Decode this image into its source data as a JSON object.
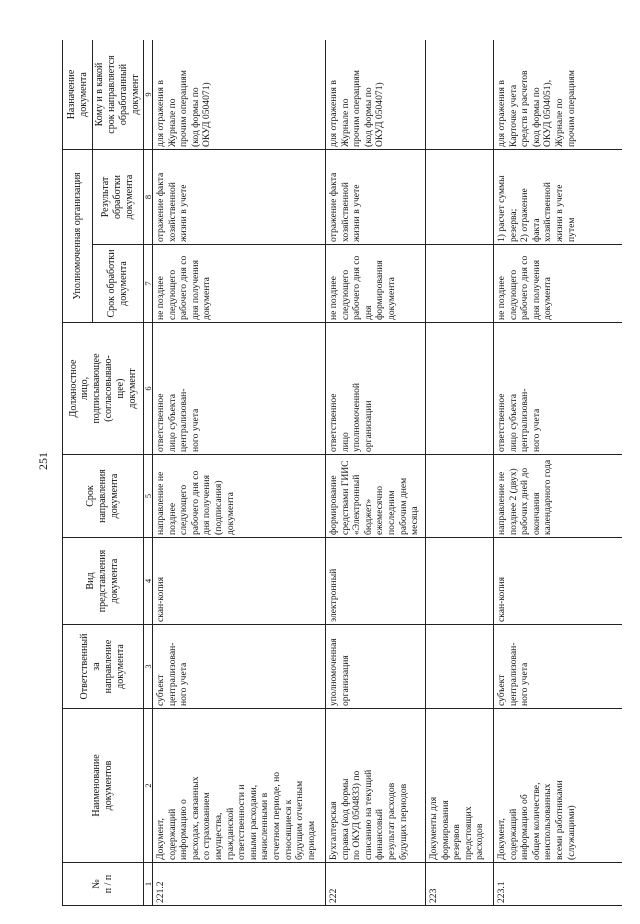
{
  "page_number": "251",
  "table": {
    "headers": {
      "col1": "№\nп / п",
      "col2": "Наименование\nдокументов",
      "col3": "Ответственный\nза\nнаправление\nдокумента",
      "col4": "Вид\nпредставления\nдокумента",
      "col5": "Срок\nнаправления\nдокумента",
      "col6": "Должностное\nлицо,\nподписывающее\n(согласовываю-\nщее)\nдокумент",
      "group_org": "Уполномоченная организация",
      "col7": "Срок обработки\nдокумента",
      "col8": "Результат\nобработки\nдокумента",
      "group_purpose": "Назначение\nдокумента",
      "col9": "Кому и в какой\nсрок направляется\nобработанный\nдокумент"
    },
    "column_numbers": [
      "1",
      "2",
      "3",
      "4",
      "5",
      "6",
      "7",
      "8",
      "9"
    ],
    "rows": [
      [
        "221.2",
        "Документ,\nсодержащий\nинформацию о\nрасходах, связанных\nсо страхованием\nимущества,\nгражданской\nответственности и\nиными расходами,\nначисленными в\nотчетном периоде, но\nотносящиеся к\nбудущим отчетным\nпериодам",
        "субъект\nцентрализован-\nного учета",
        "скан-копия",
        "направление не\nпозднее\nследующего\nрабочего дня со\nдня получения\n(подписания)\nдокумента",
        "ответственное\nлицо субъекта\nцентрализован-\nного учета",
        "не позднее\nследующего\nрабочего дня со\nдня получения\nдокумента",
        "отражение факта\nхозяйственной\nжизни в учете",
        "для отражения в\nЖурнале по\nпрочим операциям\n(код формы по\nОКУД 0504071)"
      ],
      [
        "222",
        "Бухгалтерская\nсправка (код формы\nпо ОКУД 0504833) по\nсписанию на текущий\nфинансовый\nрезультат расходов\nбудущих периодов",
        "уполномоченная\nорганизация",
        "электронный",
        "формирование\nсредствами ГИИС\n«Электронный\nбюджет»\nежемесячно\nпоследним\nрабочим днем\nмесяца",
        "ответственное\nлицо\nуполномоченной\nорганизации",
        "не позднее\nследующего\nрабочего дня со\nдня формирования\nдокумента",
        "отражение факта\nхозяйственной\nжизни в учете",
        "для отражения в\nЖурнале по\nпрочим операциям\n(код формы по\nОКУД 0504071)"
      ],
      [
        "223",
        "Документы для\nформирования\nрезервов\nпредстоящих\nрасходов",
        "",
        "",
        "",
        "",
        "",
        "",
        ""
      ],
      [
        "223.1",
        "Документ,\nсодержащий\nинформацию об\nобщем количестве,\nнеиспользованных\nвсеми работниками\n(служащими)",
        "субъект\nцентрализован-\nного учета",
        "скан-копия",
        "направление не\nпозднее 2 (двух)\nрабочих дней до\nокончания\nкалендарного года",
        "ответственное\nлицо субъекта\nцентрализован-\nного учета",
        "не позднее\nследующего\nрабочего дня со\nдня получения\nдокумента",
        "1) расчет суммы\nрезерва;\n2) отражение\nфакта\nхозяйственной\nжизни в учете\nпутем",
        "для отражения в\nКарточке учета\nсредств и расчетов\n(код формы по\nОКУД 0504051),\nЖурнале по\nпрочим операциям"
      ]
    ]
  }
}
